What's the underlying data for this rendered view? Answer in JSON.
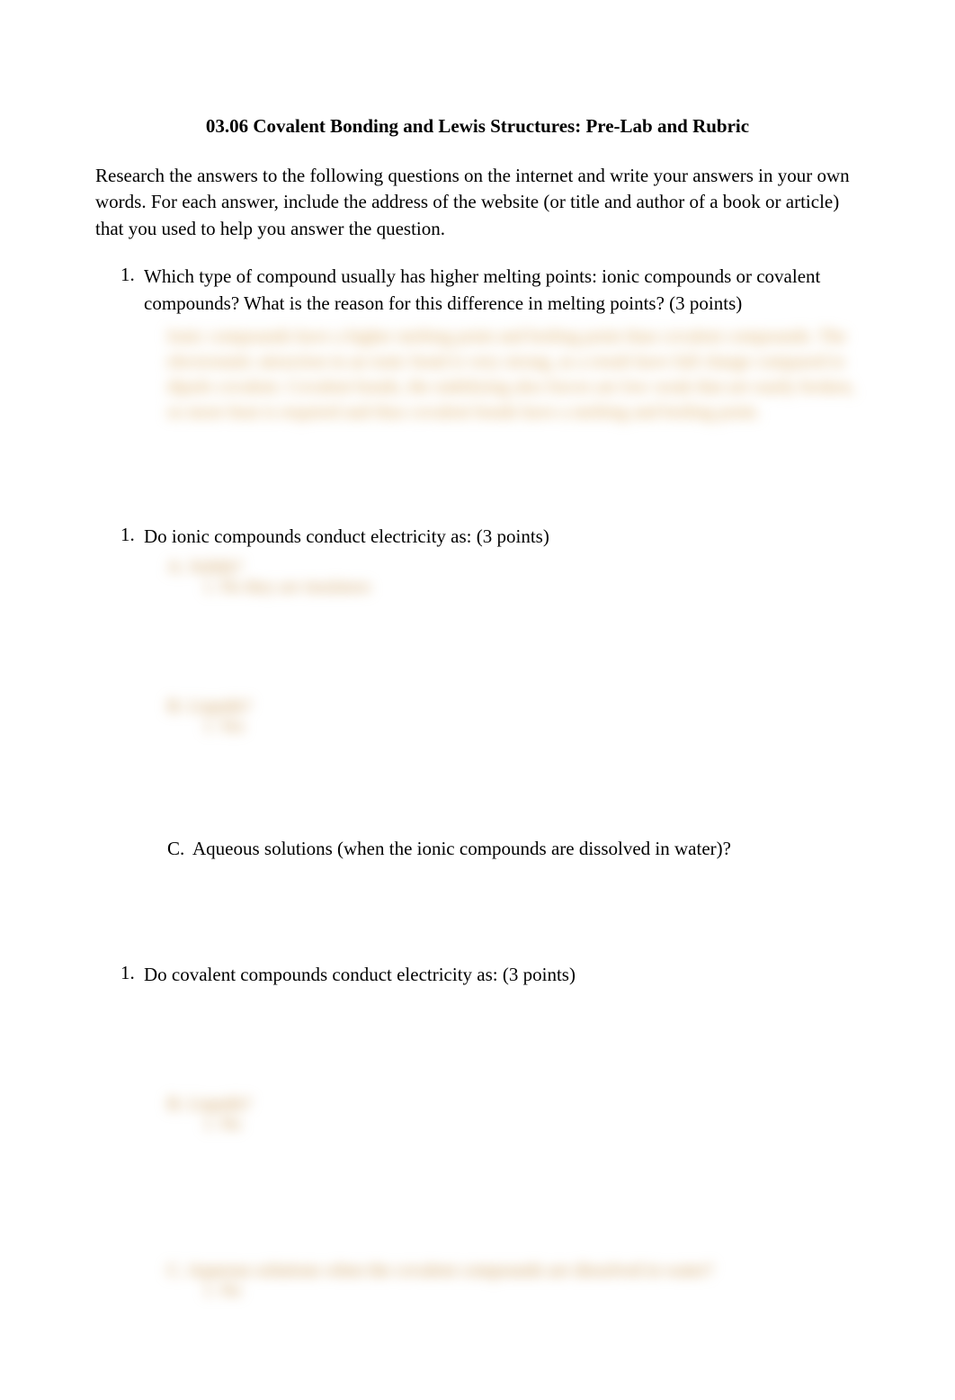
{
  "title": "03.06 Covalent Bonding and Lewis Structures: Pre-Lab and Rubric",
  "intro": "Research the answers to the following questions on the internet and write your answers in your own words. For each answer, include the address of the website (or title and author of a book or article) that you used to help you answer the question.",
  "q1": {
    "number": "1.",
    "text": "Which type of compound usually has higher melting points: ionic compounds or covalent compounds? What is the reason for this difference in melting points? (3 points)",
    "answer_bullet": "a.",
    "answer_blur": "Ionic compounds have a higher melting point and boiling point than covalent compounds. The electrostatic attraction in an ionic bond is very strong, as a result have full charge compared to dipole covalent. Covalent bonds, the stabilizing also forces are low weak that are easily broken, so more heat is required and thus covalent bonds have a melting and boiling point."
  },
  "q2": {
    "number": "1.",
    "text": "Do ionic compounds conduct electricity as: (3 points)",
    "subA_label": "A. Solids?",
    "subA_blur": "1.  No they are insulators",
    "subB_label": "B. Liquids?",
    "subB_blur": "1.  Yes",
    "subC_letter": "C.",
    "subC_text": "Aqueous solutions (when the ionic compounds are dissolved in water)?"
  },
  "q3": {
    "number": "1.",
    "text": "Do covalent compounds conduct electricity as: (3 points)",
    "subB_label": "B. Liquids?",
    "subB_blur": "1.  No",
    "subC_blur_label": "C.  Aqueous solutions when the covalent compounds are dissolved in water?",
    "subC_blur": "1.  No"
  },
  "colors": {
    "text": "#000000",
    "blur_text": "#d9a85e",
    "background": "#ffffff"
  },
  "typography": {
    "base_font": "Times New Roman",
    "title_size": 21,
    "body_size": 21,
    "blur_size": 20
  }
}
